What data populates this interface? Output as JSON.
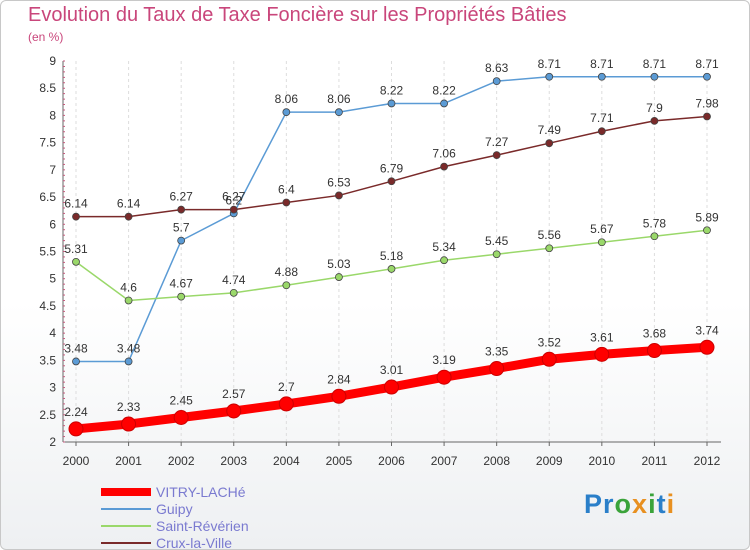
{
  "title": "Evolution du Taux de Taxe Foncière sur les Propriétés Bâties",
  "unit": "(en %)",
  "logo": {
    "text": "Proxiti",
    "letter_colors": [
      "#2a7fc9",
      "#2a7fc9",
      "#3aa33a",
      "#e89020",
      "#3aa33a",
      "#2a7fc9",
      "#e89020"
    ]
  },
  "chart_data": {
    "type": "line",
    "title": "Evolution du Taux de Taxe Foncière sur les Propriétés Bâties",
    "ylabel": "(en %)",
    "xlabel": "",
    "x": [
      2000,
      2001,
      2002,
      2003,
      2004,
      2005,
      2006,
      2007,
      2008,
      2009,
      2010,
      2011,
      2012
    ],
    "ylim": [
      2,
      9
    ],
    "yticks": [
      2,
      2.5,
      3,
      3.5,
      4,
      4.5,
      5,
      5.5,
      6,
      6.5,
      7,
      7.5,
      8,
      8.5,
      9
    ],
    "series": [
      {
        "name": "VITRY-LACHé",
        "color": "#ff0000",
        "values": [
          2.24,
          2.33,
          2.45,
          2.57,
          2.7,
          2.84,
          3.01,
          3.19,
          3.35,
          3.52,
          3.61,
          3.68,
          3.74
        ],
        "labels": [
          "2.24",
          "2.33",
          "2.45",
          "2.57",
          "2.7",
          "2.84",
          "3.01",
          "3.19",
          "3.35",
          "3.52",
          "3.61",
          "3.68",
          "3.74"
        ]
      },
      {
        "name": "Guipy",
        "color": "#5b9bd5",
        "values": [
          3.48,
          3.48,
          5.7,
          6.2,
          8.06,
          8.06,
          8.22,
          8.22,
          8.63,
          8.71,
          8.71,
          8.71,
          8.71
        ],
        "labels": [
          "3.48",
          "3.48",
          "5.7",
          "6.2",
          "8.06",
          "8.06",
          "8.22",
          "8.22",
          "8.63",
          "8.71",
          "8.71",
          "8.71",
          "8.71"
        ]
      },
      {
        "name": "Saint-Révérien",
        "color": "#9ad86a",
        "values": [
          5.31,
          4.6,
          4.67,
          4.74,
          4.88,
          5.03,
          5.18,
          5.34,
          5.45,
          5.56,
          5.67,
          5.78,
          5.89
        ],
        "labels": [
          "5.31",
          "4.6",
          "4.67",
          "4.74",
          "4.88",
          "5.03",
          "5.18",
          "5.34",
          "5.45",
          "5.56",
          "5.67",
          "5.78",
          "5.89"
        ]
      },
      {
        "name": "Crux-la-Ville",
        "color": "#7a2a2a",
        "values": [
          6.14,
          6.14,
          6.27,
          6.27,
          6.4,
          6.53,
          6.79,
          7.06,
          7.27,
          7.49,
          7.71,
          7.9,
          7.98
        ],
        "labels": [
          "6.14",
          "6.14",
          "6.27",
          "6.27",
          "6.4",
          "6.53",
          "6.79",
          "7.06",
          "7.27",
          "7.49",
          "7.71",
          "7.9",
          "7.98"
        ]
      }
    ],
    "legend_position": "bottom-left"
  }
}
